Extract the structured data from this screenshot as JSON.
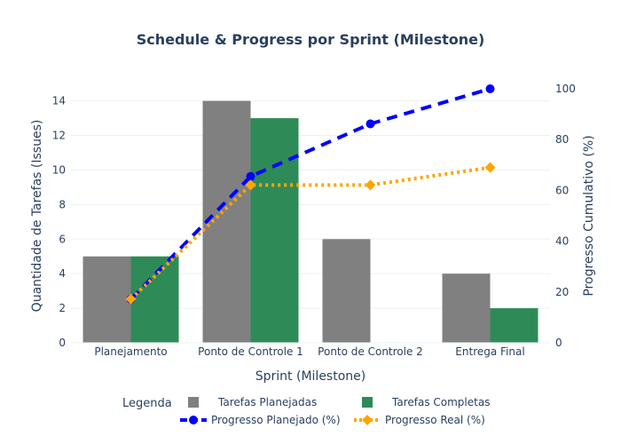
{
  "chart_data": {
    "type": "bar",
    "title": "Schedule & Progress por Sprint (Milestone)",
    "xlabel": "Sprint (Milestone)",
    "ylabel": "Quantidade de Tarefas (Issues)",
    "y2label": "Progresso Cumulativo (%)",
    "categories": [
      "Planejamento",
      "Ponto de Controle 1",
      "Ponto de Controle 2",
      "Entrega Final"
    ],
    "ylim": [
      0,
      14.7
    ],
    "y2lim": [
      0,
      100
    ],
    "yticks": [
      "0",
      "2",
      "4",
      "6",
      "8",
      "10",
      "12",
      "14"
    ],
    "y2ticks": [
      "0",
      "20",
      "40",
      "60",
      "80",
      "100"
    ],
    "grid": true,
    "legend_title": "Legenda",
    "legend_position": "bottom",
    "series": [
      {
        "name": "Tarefas Planejadas",
        "kind": "bar",
        "axis": "y",
        "color": "#808080",
        "values": [
          5,
          14,
          6,
          4
        ]
      },
      {
        "name": "Tarefas Completas",
        "kind": "bar",
        "axis": "y",
        "color": "#2e8b57",
        "values": [
          5,
          13,
          0,
          2
        ]
      },
      {
        "name": "Progresso Planejado (%)",
        "kind": "line",
        "axis": "y2",
        "color": "#0000ff",
        "dash": "dash",
        "marker": "circle",
        "values": [
          17.2,
          65.5,
          86.2,
          100
        ]
      },
      {
        "name": "Progresso Real (%)",
        "kind": "line",
        "axis": "y2",
        "color": "#ffa500",
        "dash": "dot",
        "marker": "diamond",
        "values": [
          17.2,
          62.1,
          62.1,
          69
        ]
      }
    ]
  }
}
